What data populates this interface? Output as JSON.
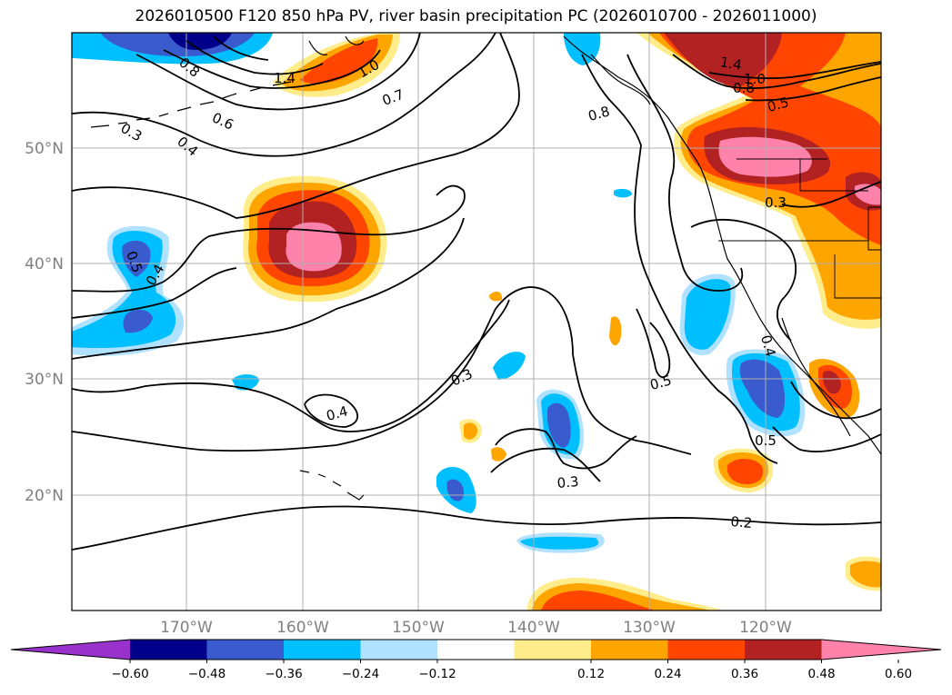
{
  "title": "2026010500 F120 850 hPa PV, river basin precipitation PC (2026010700 - 2026011000)",
  "lat_labels": [
    "50°N",
    "40°N",
    "30°N",
    "20°N"
  ],
  "lon_labels": [
    "170°W",
    "160°W",
    "150°W",
    "140°W",
    "130°W",
    "120°W"
  ],
  "contour_labels": [
    "0.8",
    "1.4",
    "1.0",
    "0.7",
    "0.6",
    "0.3",
    "0.4",
    "0.8",
    "1.4",
    "1.0",
    "0.8",
    "0.5",
    "0.3",
    "0.5",
    "0.4",
    "0.3",
    "0.4",
    "0.5",
    "0.4",
    "0.5",
    "0.3",
    "0.2"
  ],
  "colorbar": {
    "ticks": [
      "−0.60",
      "−0.48",
      "−0.36",
      "−0.24",
      "−0.12",
      "0.12",
      "0.24",
      "0.36",
      "0.48",
      "0.60"
    ],
    "colors": [
      "#9932cc",
      "#00008b",
      "#3a5bcd",
      "#00bfff",
      "#b0e2ff",
      "#ffffff",
      "#ffec8b",
      "#ffa500",
      "#ff4500",
      "#b22222",
      "#ff82ab"
    ]
  }
}
